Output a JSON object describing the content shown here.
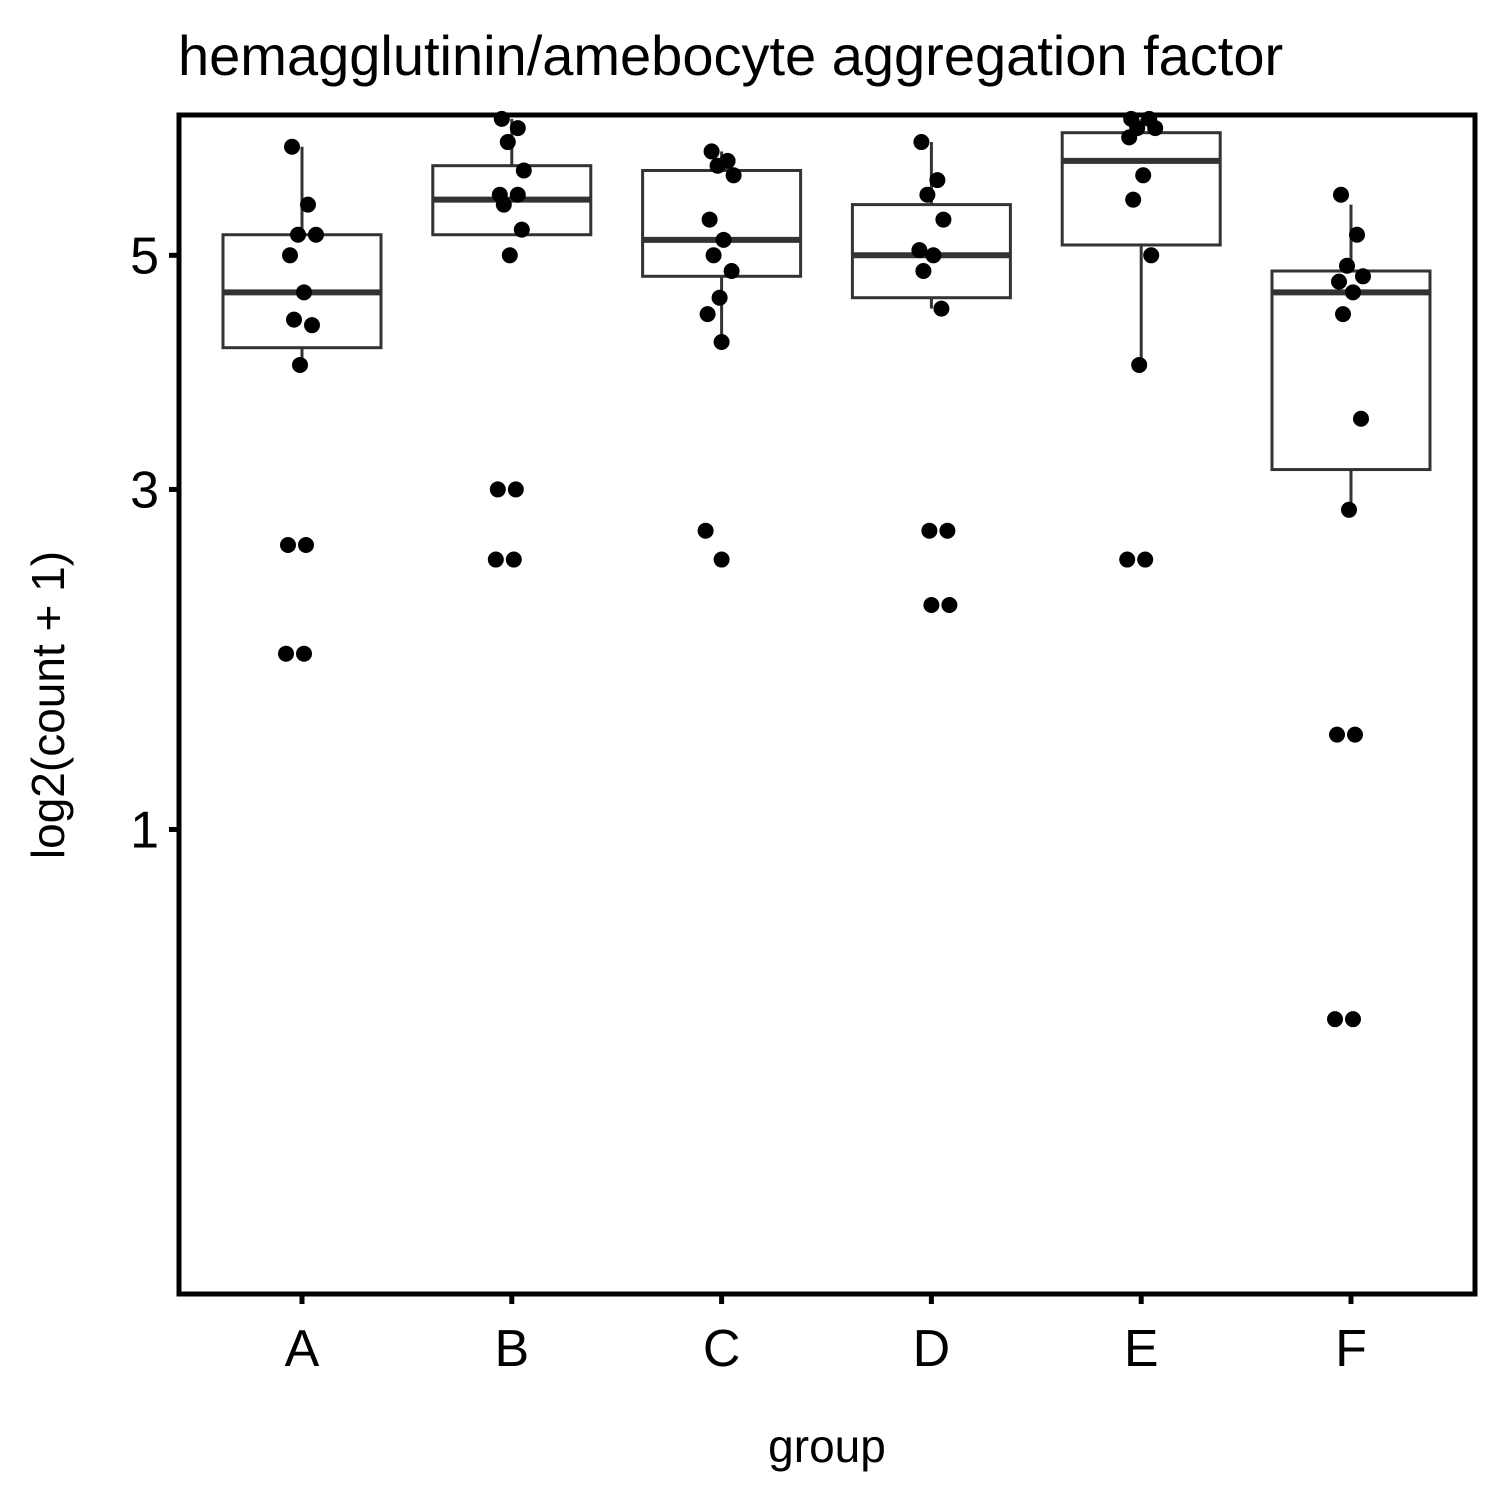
{
  "chart_data": {
    "type": "box",
    "title": "hemagglutinin/amebocyte aggregation factor",
    "xlabel": "group",
    "ylabel": "log2(count + 1)",
    "y_scale": "sqrt",
    "ylim": [
      0,
      7
    ],
    "y_ticks": [
      1,
      3,
      5
    ],
    "categories": [
      "A",
      "B",
      "C",
      "D",
      "E",
      "F"
    ],
    "grid": false,
    "legend": "none",
    "colors": {
      "points": "#000000",
      "box_outline": "#333333",
      "median": "#333333",
      "panel_border": "#000000"
    },
    "boxes": [
      {
        "group": "A",
        "whisker_low": 4.0,
        "q1": 4.15,
        "median": 4.65,
        "q3": 5.2,
        "whisker_high": 6.1
      },
      {
        "group": "B",
        "whisker_low": 5.2,
        "q1": 5.2,
        "median": 5.55,
        "q3": 5.9,
        "whisker_high": 6.4
      },
      {
        "group": "C",
        "whisker_low": 4.2,
        "q1": 4.8,
        "median": 5.15,
        "q3": 5.85,
        "whisker_high": 6.05
      },
      {
        "group": "D",
        "whisker_low": 4.5,
        "q1": 4.6,
        "median": 5.0,
        "q3": 5.5,
        "whisker_high": 6.15
      },
      {
        "group": "E",
        "whisker_low": 4.0,
        "q1": 5.1,
        "median": 5.95,
        "q3": 6.25,
        "whisker_high": 6.4
      },
      {
        "group": "F",
        "whisker_low": 2.85,
        "q1": 3.15,
        "median": 4.65,
        "q3": 4.85,
        "whisker_high": 5.5
      }
    ],
    "points": [
      {
        "group": "A",
        "values": [
          6.1,
          5.5,
          5.2,
          5.2,
          5.0,
          4.65,
          4.4,
          4.35,
          4.0,
          2.6,
          2.6,
          1.9,
          1.9
        ]
      },
      {
        "group": "B",
        "values": [
          6.4,
          6.3,
          6.15,
          5.85,
          5.6,
          5.6,
          5.5,
          5.25,
          5.0,
          3.0,
          3.0,
          2.5,
          2.5
        ]
      },
      {
        "group": "C",
        "values": [
          6.05,
          5.95,
          5.9,
          5.8,
          5.35,
          5.15,
          5.0,
          4.85,
          4.6,
          4.45,
          4.2,
          2.7,
          2.5
        ]
      },
      {
        "group": "D",
        "values": [
          6.15,
          5.75,
          5.6,
          5.35,
          5.05,
          5.0,
          4.85,
          4.5,
          2.7,
          2.7,
          2.2,
          2.2
        ]
      },
      {
        "group": "E",
        "values": [
          6.4,
          6.4,
          6.3,
          6.3,
          6.2,
          5.8,
          5.55,
          5.0,
          4.0,
          2.5,
          2.5
        ]
      },
      {
        "group": "F",
        "values": [
          5.6,
          5.2,
          4.9,
          4.8,
          4.75,
          4.65,
          4.45,
          3.55,
          2.85,
          1.45,
          1.45,
          0.35,
          0.35
        ]
      }
    ]
  }
}
